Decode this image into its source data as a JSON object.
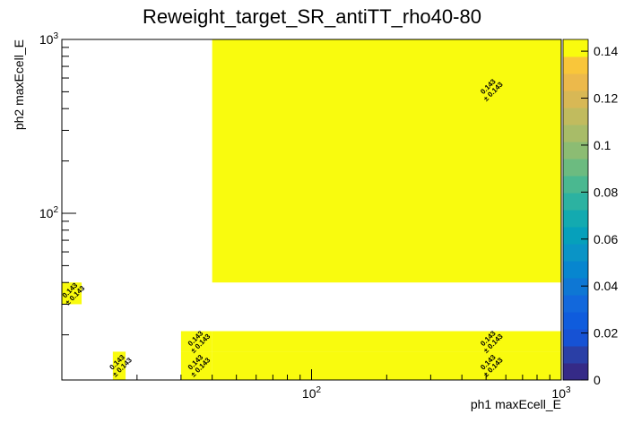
{
  "chart_data": {
    "type": "heatmap2d",
    "title": "Reweight_target_SR_antiTT_rho40-80",
    "x_label": "ph1 maxEcell_E",
    "y_label": "ph2 maxEcell_E",
    "xlog": true,
    "ylog": true,
    "xlim": [
      10,
      1000
    ],
    "ylim": [
      11,
      1000
    ],
    "xticks": [
      {
        "value": 100,
        "label": "10",
        "exponent": "2"
      },
      {
        "value": 1000,
        "label": "10",
        "exponent": "3"
      }
    ],
    "yticks": [
      {
        "value": 100,
        "label": "10",
        "exponent": "2"
      },
      {
        "value": 1000,
        "label": "10",
        "exponent": "3"
      }
    ],
    "xminorticks": [
      20,
      30,
      40,
      50,
      60,
      70,
      80,
      90,
      200,
      300,
      400,
      500,
      600,
      700,
      800,
      900
    ],
    "yminorticks": [
      20,
      30,
      40,
      50,
      60,
      70,
      80,
      90,
      200,
      300,
      400,
      500,
      600,
      700,
      800,
      900
    ],
    "zlim": [
      0,
      0.145
    ],
    "zticks": [
      0,
      0.02,
      0.04,
      0.06,
      0.08,
      0.1,
      0.12,
      0.14
    ],
    "palette": [
      "#352a87",
      "#2a3fa6",
      "#1652d4",
      "#0f5cdd",
      "#1268dc",
      "#0e77d4",
      "#0786cf",
      "#0a94c6",
      "#06a0bb",
      "#13aab0",
      "#2cb2a1",
      "#4ab890",
      "#6cbb80",
      "#8cbc73",
      "#a8bc68",
      "#c1bb5e",
      "#d8b855",
      "#ecb94b",
      "#f9c63a",
      "#f9fb0e"
    ],
    "cells": [
      {
        "x": [
          40,
          1000
        ],
        "y": [
          40,
          1000
        ],
        "value": 0.143,
        "error": 0.143,
        "value_label": "0.143",
        "error_label": "± 0.143"
      },
      {
        "x": [
          10,
          12
        ],
        "y": [
          30,
          40
        ],
        "value": 0.143,
        "error": 0.143,
        "value_label": "0.143",
        "error_label": "± 0.143"
      },
      {
        "x": [
          16,
          18
        ],
        "y": [
          11,
          16
        ],
        "value": 0.143,
        "error": 0.143,
        "value_label": "0.143",
        "error_label": "± 0.143"
      },
      {
        "x": [
          30,
          40
        ],
        "y": [
          16,
          21
        ],
        "value": 0.143,
        "error": 0.143,
        "value_label": "0.143",
        "error_label": "± 0.143"
      },
      {
        "x": [
          30,
          40
        ],
        "y": [
          11,
          16
        ],
        "value": 0.143,
        "error": 0.143,
        "value_label": "0.143",
        "error_label": "± 0.143"
      },
      {
        "x": [
          40,
          1000
        ],
        "y": [
          16,
          21
        ],
        "value": 0.143,
        "error": 0.143,
        "value_label": "0.143",
        "error_label": "± 0.143"
      },
      {
        "x": [
          40,
          1000
        ],
        "y": [
          11,
          16
        ],
        "value": 0.143,
        "error": 0.143,
        "value_label": "0.143",
        "error_label": "± 0.143"
      }
    ]
  }
}
